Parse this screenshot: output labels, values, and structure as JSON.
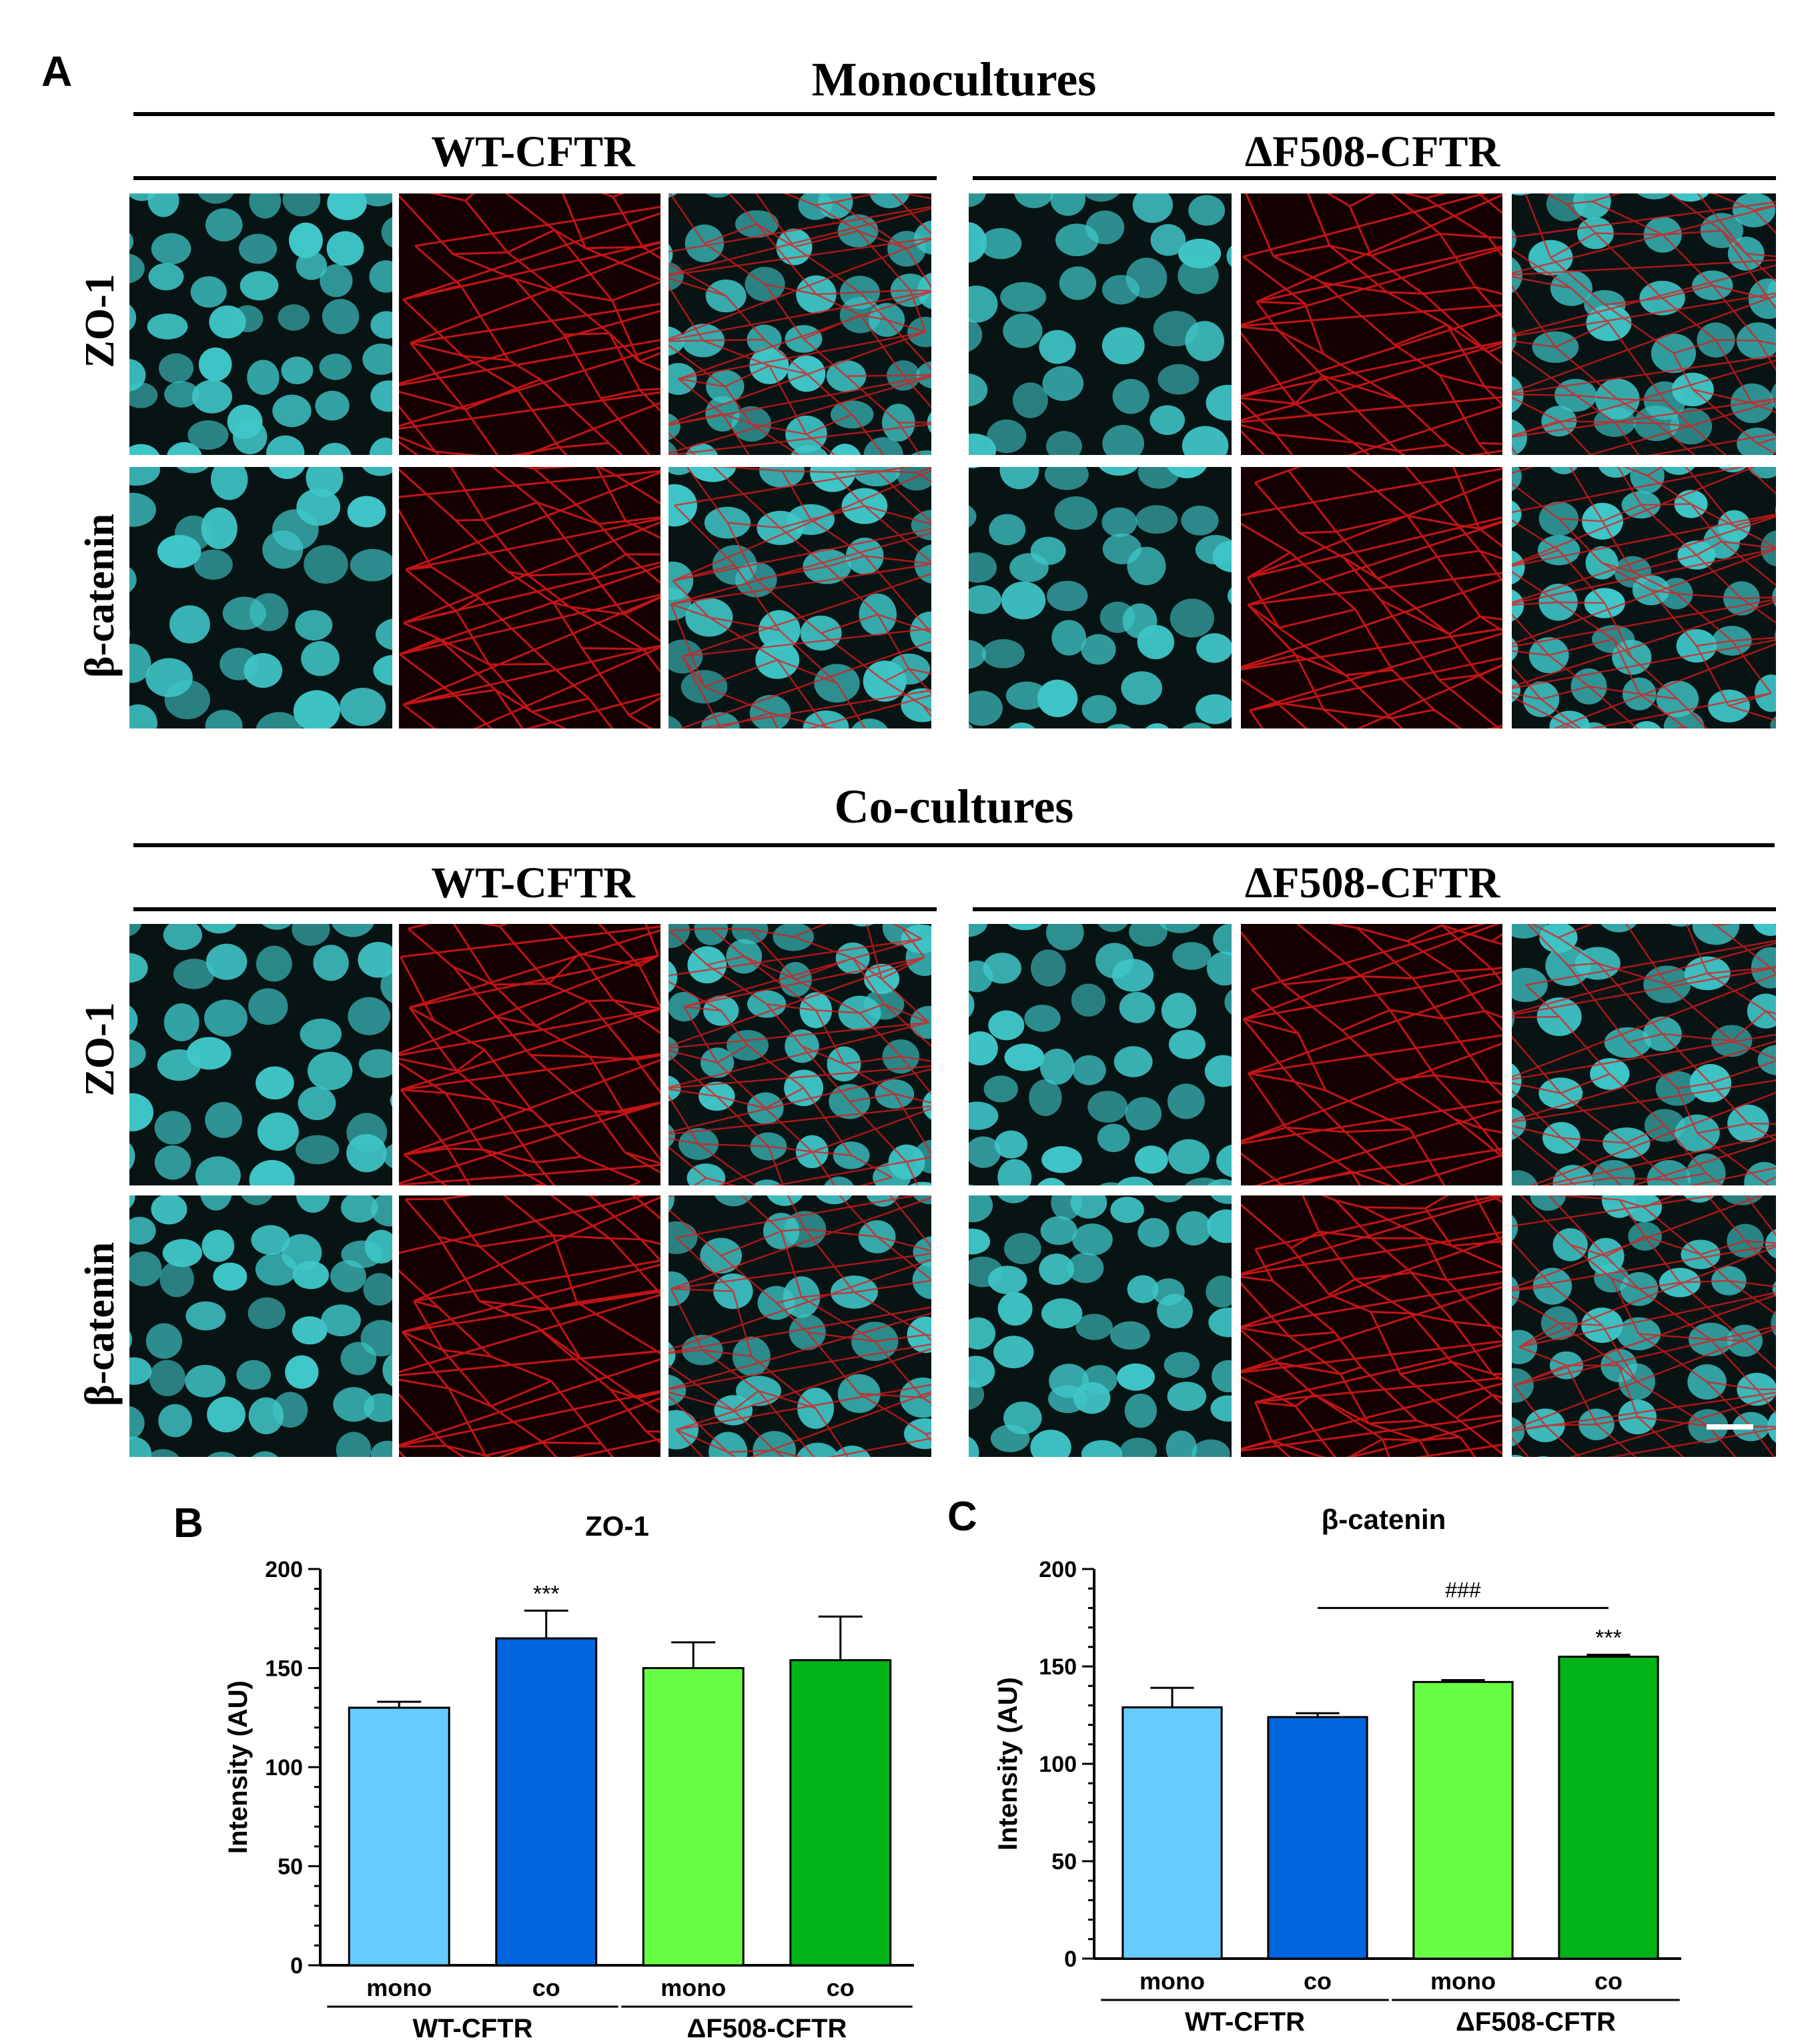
{
  "panel_a": {
    "letter": "A",
    "sections": [
      {
        "title": "Monocultures",
        "groups": [
          "WT-CFTR",
          "ΔF508-CFTR"
        ],
        "rows": [
          "ZO-1",
          "β-catenin"
        ]
      },
      {
        "title": "Co-cultures",
        "groups": [
          "WT-CFTR",
          "ΔF508-CFTR"
        ],
        "rows": [
          "ZO-1",
          "β-catenin"
        ]
      }
    ],
    "channels": [
      "nuclei (cyan)",
      "marker (red)",
      "merge"
    ],
    "colors": {
      "nuclei": "#3fc6c8",
      "marker": "#e01818",
      "background": "#081414"
    }
  },
  "chart_data": [
    {
      "panel": "B",
      "type": "bar",
      "title": "ZO-1",
      "ylabel": "Intensity (AU)",
      "ylim": [
        0,
        200
      ],
      "yticks": [
        "0",
        "50",
        "100",
        "150",
        "200"
      ],
      "categories": [
        "mono",
        "co",
        "mono",
        "co"
      ],
      "groups": [
        "WT-CFTR",
        "ΔF508-CFTR"
      ],
      "values": [
        130,
        165,
        150,
        154
      ],
      "errors": [
        3,
        14,
        13,
        22
      ],
      "colors": [
        "#66ccff",
        "#0066dd",
        "#66ff44",
        "#00b418"
      ],
      "annotations": [
        {
          "bar": 1,
          "text": "***"
        }
      ],
      "brackets": []
    },
    {
      "panel": "C",
      "type": "bar",
      "title": "β-catenin",
      "ylabel": "Intensity (AU)",
      "ylim": [
        0,
        200
      ],
      "yticks": [
        "0",
        "50",
        "100",
        "150",
        "200"
      ],
      "categories": [
        "mono",
        "co",
        "mono",
        "co"
      ],
      "groups": [
        "WT-CFTR",
        "ΔF508-CFTR"
      ],
      "values": [
        129,
        124,
        142,
        155
      ],
      "errors": [
        10,
        2,
        1,
        1
      ],
      "colors": [
        "#66ccff",
        "#0066dd",
        "#66ff44",
        "#00b418"
      ],
      "annotations": [
        {
          "bar": 3,
          "text": "***"
        }
      ],
      "brackets": [
        {
          "from": 1,
          "to": 3,
          "text": "###"
        }
      ]
    }
  ]
}
